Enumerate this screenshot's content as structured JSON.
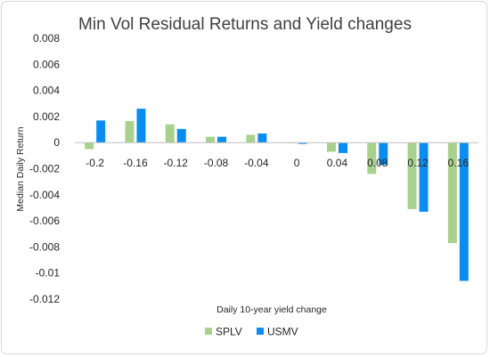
{
  "chart_data": {
    "type": "bar",
    "title": "Min Vol Residual Returns and Yield changes",
    "xlabel": "Daily 10-year yield change",
    "ylabel": "Median Daily  Return",
    "categories": [
      "-0.2",
      "-0.16",
      "-0.12",
      "-0.08",
      "-0.04",
      "0",
      "0.04",
      "0.08",
      "0.12",
      "0.16"
    ],
    "series": [
      {
        "name": "SPLV",
        "color": "#a9d18e",
        "values": [
          -0.0005,
          0.00165,
          0.0014,
          0.00045,
          0.0006,
          0.0,
          -0.0007,
          -0.0024,
          -0.0051,
          -0.0077
        ]
      },
      {
        "name": "USMV",
        "color": "#0b8df0",
        "values": [
          0.0017,
          0.0026,
          0.00105,
          0.00045,
          0.0007,
          -0.0001,
          -0.0008,
          -0.0017,
          -0.0053,
          -0.0106
        ]
      }
    ],
    "ylim": [
      -0.012,
      0.008
    ],
    "yticks": [
      "0.008",
      "0.006",
      "0.004",
      "0.002",
      "0",
      "-0.002",
      "-0.004",
      "-0.006",
      "-0.008",
      "-0.01",
      "-0.012"
    ],
    "ytick_values": [
      0.008,
      0.006,
      0.004,
      0.002,
      0,
      -0.002,
      -0.004,
      -0.006,
      -0.008,
      -0.01,
      -0.012
    ],
    "grid": false,
    "legend": "bottom"
  }
}
